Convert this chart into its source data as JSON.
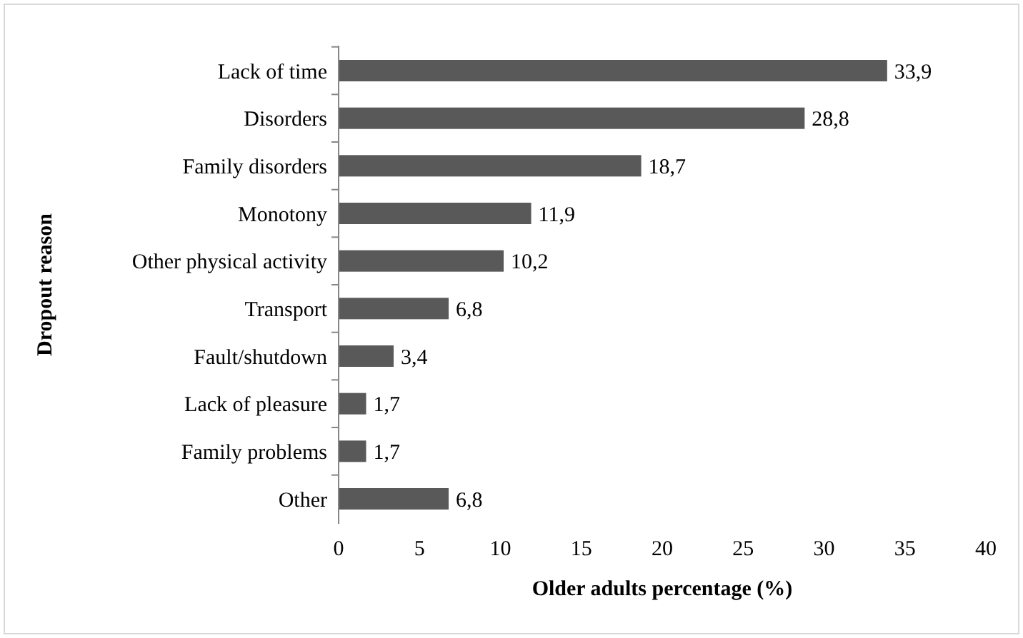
{
  "chart_data": {
    "type": "bar",
    "orientation": "horizontal",
    "xlabel": "Older adults percentage (%)",
    "ylabel": "Dropout reason",
    "categories": [
      "Lack of time",
      "Disorders",
      "Family disorders",
      "Monotony",
      "Other physical activity",
      "Transport",
      "Fault/shutdown",
      "Lack of pleasure",
      "Family problems",
      "Other"
    ],
    "values": [
      33.9,
      28.8,
      18.7,
      11.9,
      10.2,
      6.8,
      3.4,
      1.7,
      1.7,
      6.8
    ],
    "value_labels": [
      "33,9",
      "28,8",
      "18,7",
      "11,9",
      "10,2",
      "6,8",
      "3,4",
      "1,7",
      "1,7",
      "6,8"
    ],
    "color": "#595959",
    "xlim": [
      0,
      40
    ],
    "xticks": [
      0,
      5,
      10,
      15,
      20,
      25,
      30,
      35,
      40
    ],
    "grid": false
  }
}
